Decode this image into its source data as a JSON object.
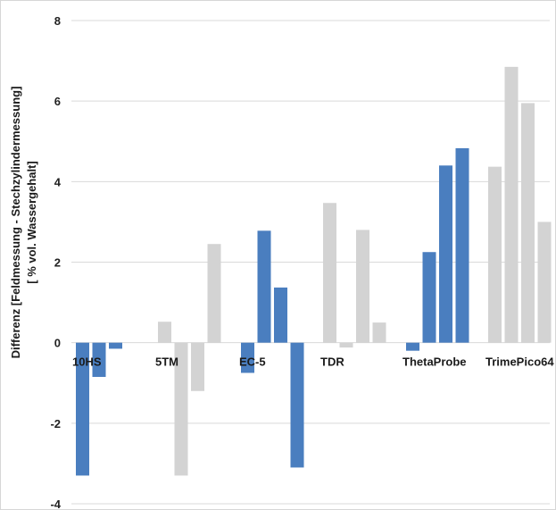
{
  "chart_data": {
    "type": "bar",
    "ylabel_line1": "Differenz [Feldmessung - Stechzylindermessung]",
    "ylabel_line2": "[ % vol. Wassergehalt]",
    "ylim": [
      -4,
      8
    ],
    "yticks": [
      -4,
      -2,
      0,
      2,
      4,
      6,
      8
    ],
    "grid": true,
    "categories": [
      "10HS",
      "5TM",
      "EC-5",
      "TDR",
      "ThetaProbe",
      "TrimePico64"
    ],
    "groups": [
      {
        "category": "10HS",
        "values": [
          -3.3,
          -0.85,
          -0.15
        ],
        "colors": [
          "#4a7ebf",
          "#4a7ebf",
          "#4a7ebf"
        ]
      },
      {
        "category": "5TM",
        "values": [
          0.52,
          -3.3,
          -1.2,
          2.45
        ],
        "colors": [
          "#d3d3d3",
          "#d3d3d3",
          "#d3d3d3",
          "#d3d3d3"
        ]
      },
      {
        "category": "EC-5",
        "values": [
          -0.75,
          2.78,
          1.37,
          -3.1
        ],
        "colors": [
          "#4a7ebf",
          "#4a7ebf",
          "#4a7ebf",
          "#4a7ebf"
        ]
      },
      {
        "category": "TDR",
        "values": [
          3.47,
          -0.12,
          2.8,
          0.5
        ],
        "colors": [
          "#d3d3d3",
          "#d3d3d3",
          "#d3d3d3",
          "#d3d3d3"
        ]
      },
      {
        "category": "ThetaProbe",
        "values": [
          -0.2,
          2.25,
          4.4,
          4.83
        ],
        "colors": [
          "#4a7ebf",
          "#4a7ebf",
          "#4a7ebf",
          "#4a7ebf"
        ]
      },
      {
        "category": "TrimePico64",
        "values": [
          4.37,
          6.85,
          5.95,
          3.0
        ],
        "colors": [
          "#d3d3d3",
          "#d3d3d3",
          "#d3d3d3",
          "#d3d3d3"
        ]
      }
    ],
    "colors": {
      "blue": "#4a7ebf",
      "gray": "#d3d3d3",
      "grid": "#d9d9d9"
    }
  }
}
